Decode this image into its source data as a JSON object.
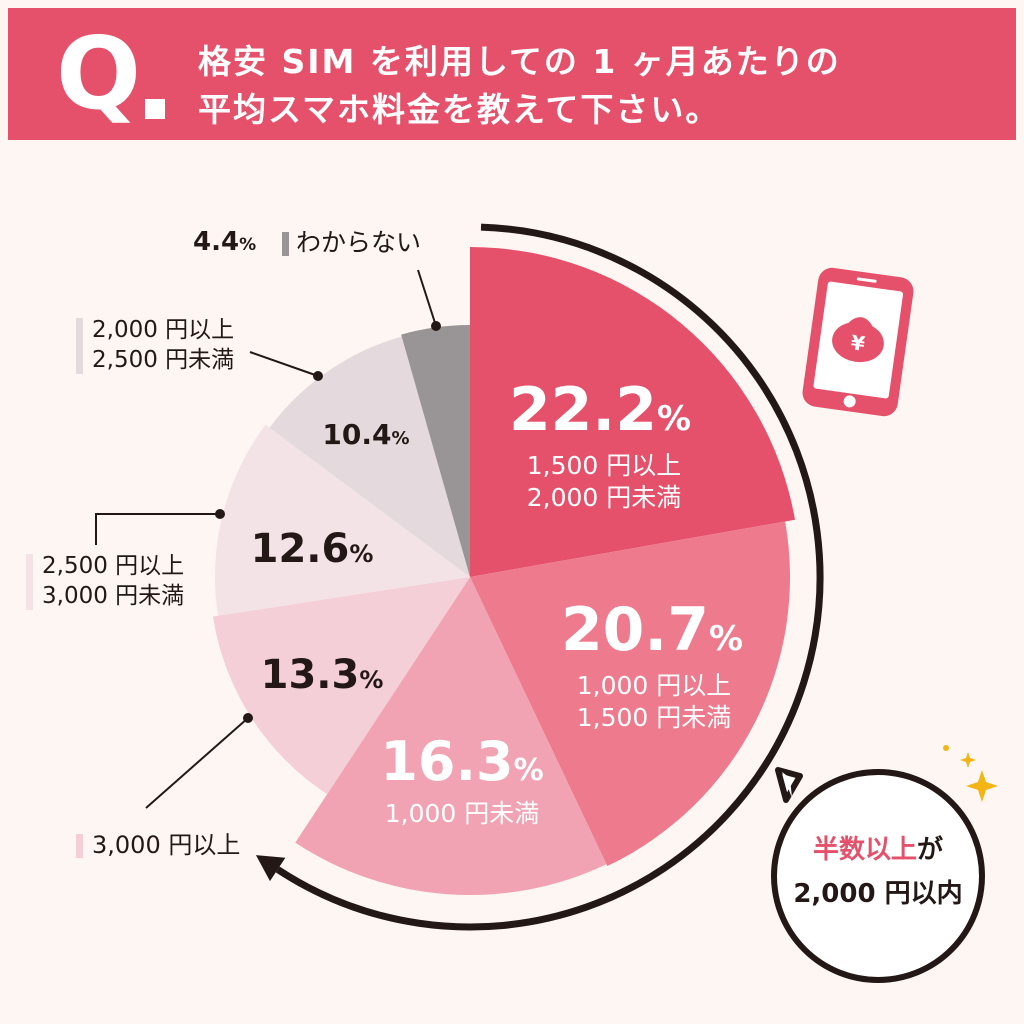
{
  "header": {
    "q_mark": "Q",
    "question_line1": "格安 SIM を利用しての 1 ヶ月あたりの",
    "question_line2": "平均スマホ料金を教えて下さい。"
  },
  "chart_data": {
    "type": "pie",
    "start": "12 o'clock",
    "direction": "clockwise",
    "slices": [
      {
        "percent": 22.2,
        "value_label": "22.2",
        "category_line1": "1,500 円以上",
        "category_line2": "2,000 円未満",
        "color": "#e5506a"
      },
      {
        "percent": 20.7,
        "value_label": "20.7",
        "category_line1": "1,000 円以上",
        "category_line2": "1,500 円未満",
        "color": "#ee7a8d"
      },
      {
        "percent": 16.3,
        "value_label": "16.3",
        "category_line1": "1,000 円未満",
        "category_line2": "",
        "color": "#f1a3b3"
      },
      {
        "percent": 13.3,
        "value_label": "13.3",
        "category_line1": "3,000 円以上",
        "category_line2": "",
        "color": "#f4cfd8"
      },
      {
        "percent": 12.6,
        "value_label": "12.6",
        "category_line1": "2,500 円以上",
        "category_line2": "3,000 円未満",
        "color": "#f4e3e6"
      },
      {
        "percent": 10.4,
        "value_label": "10.4",
        "category_line1": "2,000 円以上",
        "category_line2": "2,500 円未満",
        "color": "#e4dadd"
      },
      {
        "percent": 4.4,
        "value_label": "4.4",
        "category_line1": "わからない",
        "category_line2": "",
        "color": "#999496"
      }
    ],
    "percent_sign": "%"
  },
  "callout": {
    "accent_text": "半数以上",
    "text_suffix": "が",
    "line2": "2,000 円以内"
  },
  "icons": {
    "phone": "smartphone-yen-icon",
    "sparkle": "sparkle-icon"
  }
}
